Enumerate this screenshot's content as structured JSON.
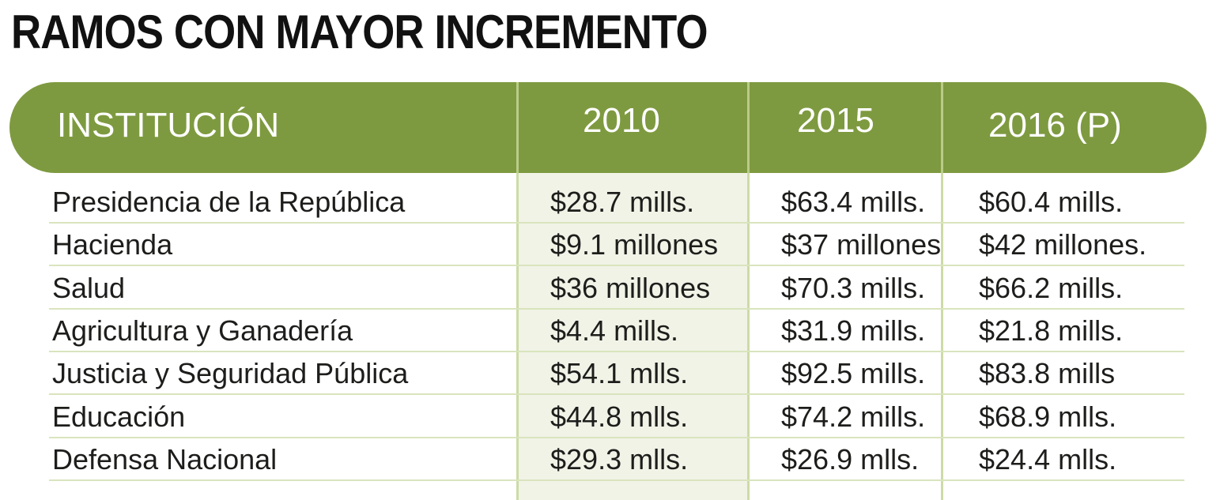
{
  "title": "RAMOS CON MAYOR INCREMENTO",
  "colors": {
    "header_green": "#7e9a40",
    "column_highlight": "#f1f3e7",
    "divider": "#cddba6"
  },
  "chart_data": {
    "type": "table",
    "title": "RAMOS CON MAYOR INCREMENTO",
    "columns": [
      "INSTITUCIÓN",
      "2010",
      "2015",
      "2016 (P)"
    ],
    "rows": [
      [
        "Presidencia de la República",
        "$28.7 mills.",
        "$63.4 mills.",
        "$60.4 mills."
      ],
      [
        "Hacienda",
        "$9.1 millones",
        "$37 millones",
        "$42 millones."
      ],
      [
        "Salud",
        "$36 millones",
        "$70.3  mills.",
        "$66.2  mills."
      ],
      [
        "Agricultura y Ganadería",
        "$4.4 mills.",
        "$31.9 mills.",
        "$21.8 mills."
      ],
      [
        "Justicia y Seguridad Pública",
        "$54.1 mlls.",
        "$92.5 mills.",
        "$83.8 mills"
      ],
      [
        "Educación",
        "$44.8 mlls.",
        "$74.2 mills.",
        "$68.9 mlls."
      ],
      [
        "Defensa Nacional",
        "$29.3 mlls.",
        "$26.9 mlls.",
        "$24.4 mlls."
      ]
    ]
  }
}
